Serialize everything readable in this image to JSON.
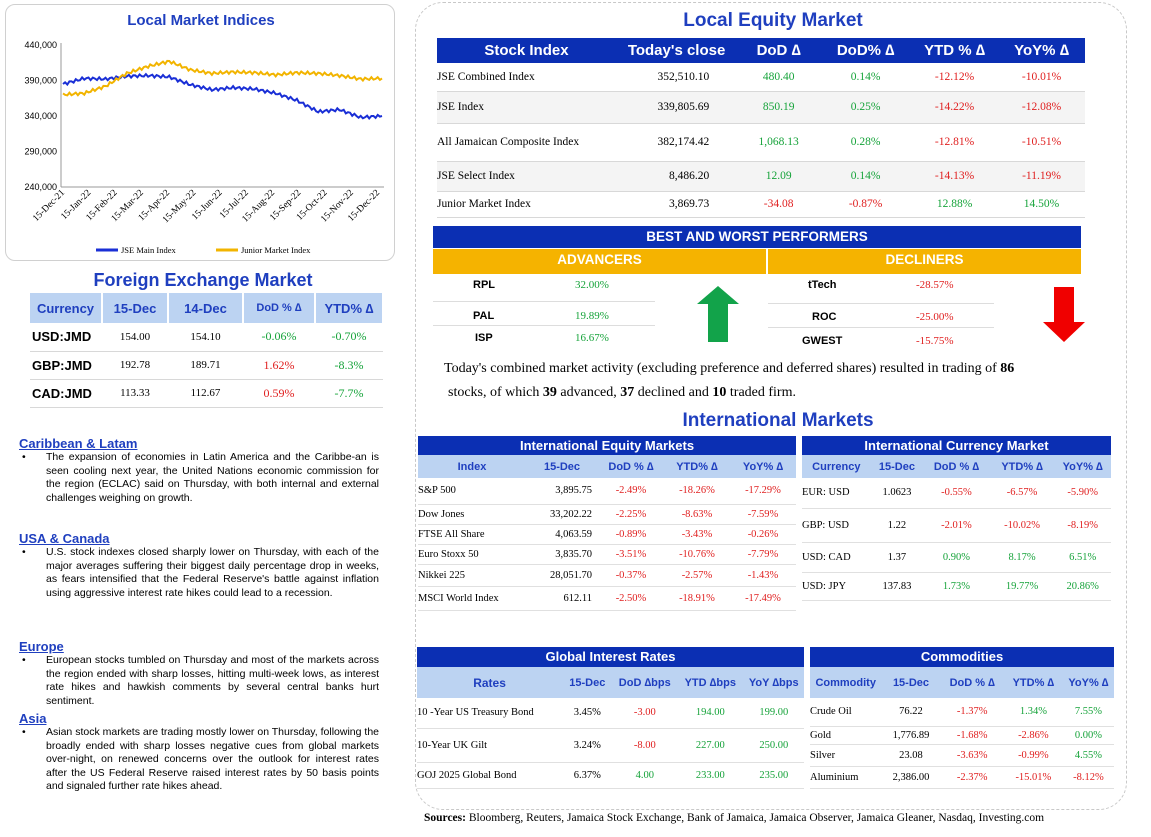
{
  "local_indices": {
    "title": "Local Market Indices",
    "chart_data": {
      "type": "line",
      "title": "Local Market Indices",
      "x_ticks": [
        "15-Dec-21",
        "15-Jan-22",
        "15-Feb-22",
        "15-Mar-22",
        "15-Apr-22",
        "15-May-22",
        "15-Jun-22",
        "15-Jul-22",
        "15-Aug-22",
        "15-Sep-22",
        "15-Oct-22",
        "15-Nov-22",
        "15-Dec-22"
      ],
      "y_ticks": [
        "440,000",
        "390,000",
        "340,000",
        "290,000",
        "240,000"
      ],
      "ylim": [
        240000,
        440000
      ],
      "series": [
        {
          "name": "JSE Main Index",
          "color": "#1a2fd6",
          "values": [
            385000,
            393000,
            392000,
            396000,
            397000,
            395000,
            384000,
            377000,
            380000,
            378000,
            372000,
            362000,
            346000,
            349000,
            338000,
            340000
          ]
        },
        {
          "name": "Junior Market Index",
          "color": "#f2b400",
          "values": [
            370000,
            372000,
            382000,
            400000,
            410000,
            417000,
            405000,
            400000,
            402000,
            401000,
            398000,
            401000,
            400000,
            397000,
            392000,
            393000
          ]
        }
      ],
      "legend": "bottom"
    },
    "legend": [
      "JSE Main Index",
      "Junior Market Index"
    ]
  },
  "fx": {
    "title": "Foreign Exchange Market",
    "headers": [
      "Currency",
      "15-Dec",
      "14-Dec",
      "DoD % ∆",
      "YTD% ∆"
    ],
    "rows": [
      {
        "cur": "USD:JMD",
        "d15": "154.00",
        "d14": "154.10",
        "dod": "-0.06%",
        "ytd": "-0.70%"
      },
      {
        "cur": "GBP:JMD",
        "d15": "192.78",
        "d14": "189.71",
        "dod": "1.62%",
        "ytd": "-8.3%"
      },
      {
        "cur": "CAD:JMD",
        "d15": "113.33",
        "d14": "112.67",
        "dod": "0.59%",
        "ytd": "-7.7%"
      }
    ]
  },
  "news": [
    {
      "heading": "Caribbean & Latam",
      "text": "The expansion of economies in Latin America and the Caribbe-an is seen cooling next year, the United Nations economic commission for the region (ECLAC) said on Thursday, with both internal and external challenges weighing on growth."
    },
    {
      "heading": "USA & Canada",
      "text": "U.S. stock indexes closed sharply lower on Thursday, with each of the major averages suffering their biggest daily percentage drop in weeks, as fears intensified that the Federal Reserve's battle against inflation using aggressive interest rate hikes could lead to a recession."
    },
    {
      "heading": "Europe",
      "text": "European stocks tumbled on Thursday and most of the markets across the region ended with sharp losses, hitting multi-week lows, as interest rate hikes and hawkish comments by several central banks hurt sentiment."
    },
    {
      "heading": "Asia",
      "text": "Asian stock markets are trading mostly lower on Thursday, following the broadly ended with sharp losses negative cues from global markets over-night, on renewed concerns over the outlook for interest rates after the US Federal Reserve raised interest rates by 50 basis points and signaled further rate hikes ahead."
    }
  ],
  "local_equity": {
    "title": "Local Equity Market",
    "headers": [
      "Stock Index",
      "Today's close",
      "DoD  ∆",
      "DoD% ∆",
      "YTD % ∆",
      "YoY% ∆"
    ],
    "rows": [
      {
        "name": "JSE Combined Index",
        "close": "352,510.10",
        "dod": "480.40",
        "dodp": "0.14%",
        "ytd": "-12.12%",
        "yoy": "-10.01%"
      },
      {
        "name": "JSE Index",
        "close": "339,805.69",
        "dod": "850.19",
        "dodp": "0.25%",
        "ytd": "-14.22%",
        "yoy": "-12.08%"
      },
      {
        "name": "All Jamaican Composite Index",
        "close": "382,174.42",
        "dod": "1,068.13",
        "dodp": "0.28%",
        "ytd": "-12.81%",
        "yoy": "-10.51%"
      },
      {
        "name": "JSE Select Index",
        "close": "8,486.20",
        "dod": "12.09",
        "dodp": "0.14%",
        "ytd": "-14.13%",
        "yoy": "-11.19%"
      },
      {
        "name": "Junior Market Index",
        "close": "3,869.73",
        "dod": "-34.08",
        "dodp": "-0.87%",
        "ytd": "12.88%",
        "yoy": "14.50%"
      }
    ]
  },
  "performers": {
    "title": "BEST AND WORST PERFORMERS",
    "advancers_label": "ADVANCERS",
    "decliners_label": "DECLINERS",
    "advancers": [
      {
        "sym": "RPL",
        "pct": "32.00%"
      },
      {
        "sym": "PAL",
        "pct": "19.89%"
      },
      {
        "sym": "ISP",
        "pct": "16.67%"
      }
    ],
    "decliners": [
      {
        "sym": "tTech",
        "pct": "-28.57%"
      },
      {
        "sym": "ROC",
        "pct": "-25.00%"
      },
      {
        "sym": "GWEST",
        "pct": "-15.75%"
      }
    ],
    "summary_a": "Today's combined market activity (excluding preference and deferred shares) resulted in trading of ",
    "summary_total": "86",
    "summary_b": "stocks, of which ",
    "summary_adv": "39",
    "summary_c": " advanced, ",
    "summary_dec": "37",
    "summary_d": " declined and ",
    "summary_firm": "10",
    "summary_e": " traded firm."
  },
  "intl": {
    "title": "International Markets",
    "equity": {
      "title": "International Equity Markets",
      "headers": [
        "Index",
        "15-Dec",
        "DoD % ∆",
        "YTD% ∆",
        "YoY% ∆"
      ],
      "rows": [
        {
          "name": "S&P 500",
          "v": "3,895.75",
          "dod": "-2.49%",
          "ytd": "-18.26%",
          "yoy": "-17.29%"
        },
        {
          "name": "Dow Jones",
          "v": "33,202.22",
          "dod": "-2.25%",
          "ytd": "-8.63%",
          "yoy": "-7.59%"
        },
        {
          "name": "FTSE All Share",
          "v": "4,063.59",
          "dod": "-0.89%",
          "ytd": "-3.43%",
          "yoy": "-0.26%"
        },
        {
          "name": "Euro Stoxx 50",
          "v": "3,835.70",
          "dod": "-3.51%",
          "ytd": "-10.76%",
          "yoy": "-7.79%"
        },
        {
          "name": "Nikkei 225",
          "v": "28,051.70",
          "dod": "-0.37%",
          "ytd": "-2.57%",
          "yoy": "-1.43%"
        },
        {
          "name": "MSCI World Index",
          "v": "612.11",
          "dod": "-2.50%",
          "ytd": "-18.91%",
          "yoy": "-17.49%"
        }
      ]
    },
    "currency": {
      "title": "International Currency Market",
      "headers": [
        "Currency",
        "15-Dec",
        "DoD % ∆",
        "YTD% ∆",
        "YoY% ∆"
      ],
      "rows": [
        {
          "name": "EUR: USD",
          "v": "1.0623",
          "dod": "-0.55%",
          "ytd": "-6.57%",
          "yoy": "-5.90%"
        },
        {
          "name": "GBP: USD",
          "v": "1.22",
          "dod": "-2.01%",
          "ytd": "-10.02%",
          "yoy": "-8.19%"
        },
        {
          "name": "USD: CAD",
          "v": "1.37",
          "dod": "0.90%",
          "ytd": "8.17%",
          "yoy": "6.51%"
        },
        {
          "name": "USD: JPY",
          "v": "137.83",
          "dod": "1.73%",
          "ytd": "19.77%",
          "yoy": "20.86%"
        }
      ]
    },
    "rates": {
      "title": "Global Interest Rates",
      "headers": [
        "Rates",
        "15-Dec",
        "DoD ∆bps",
        "YTD ∆bps",
        "YoY ∆bps"
      ],
      "rows": [
        {
          "name": "10 -Year US Treasury Bond",
          "v": "3.45%",
          "dod": "-3.00",
          "ytd": "194.00",
          "yoy": "199.00"
        },
        {
          "name": "10-Year UK Gilt",
          "v": "3.24%",
          "dod": "-8.00",
          "ytd": "227.00",
          "yoy": "250.00"
        },
        {
          "name": "GOJ 2025 Global Bond",
          "v": "6.37%",
          "dod": "4.00",
          "ytd": "233.00",
          "yoy": "235.00"
        }
      ]
    },
    "commodities": {
      "title": "Commodities",
      "headers": [
        "Commodity",
        "15-Dec",
        "DoD % ∆",
        "YTD% ∆",
        "YoY% ∆"
      ],
      "rows": [
        {
          "name": "Crude Oil",
          "v": "76.22",
          "dod": "-1.37%",
          "ytd": "1.34%",
          "yoy": "7.55%"
        },
        {
          "name": "Gold",
          "v": "1,776.89",
          "dod": "-1.68%",
          "ytd": "-2.86%",
          "yoy": "0.00%"
        },
        {
          "name": "Silver",
          "v": "23.08",
          "dod": "-3.63%",
          "ytd": "-0.99%",
          "yoy": "4.55%"
        },
        {
          "name": "Aluminium",
          "v": "2,386.00",
          "dod": "-2.37%",
          "ytd": "-15.01%",
          "yoy": "-8.12%"
        }
      ]
    }
  },
  "sources": {
    "label": "Sources:",
    "text": " Bloomberg, Reuters, Jamaica Stock Exchange, Bank of Jamaica, Jamaica Observer, Jamaica Gleaner, Nasdaq, Investing.com"
  },
  "colors": {
    "navy": "#0b2fb3",
    "light_blue": "#bcd3f2",
    "gold": "#f5b300",
    "green": "#16a33a",
    "red": "#e02020",
    "title_blue": "#1f3fbf"
  }
}
